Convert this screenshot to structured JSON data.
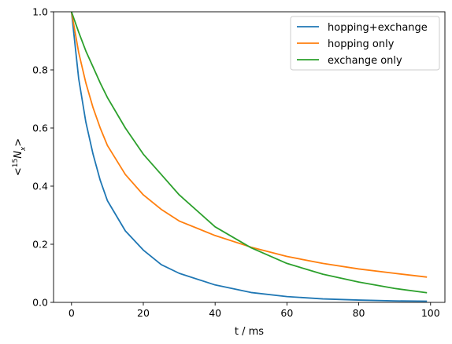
{
  "chart_data": {
    "type": "line",
    "title": "",
    "xlabel": "t / ms",
    "ylabel": "<15Nx>",
    "ylabel_parts": {
      "lt": "<",
      "sup": "15",
      "base": "N",
      "sub": "x",
      "gt": ">"
    },
    "xlim": [
      -5,
      104
    ],
    "ylim": [
      0,
      1.0
    ],
    "xticks": [
      0,
      20,
      40,
      60,
      80,
      100
    ],
    "xtick_labels": [
      "0",
      "20",
      "40",
      "60",
      "80",
      "100"
    ],
    "yticks": [
      0,
      0.2,
      0.4,
      0.6,
      0.8,
      1.0
    ],
    "ytick_labels": [
      "0.0",
      "0.2",
      "0.4",
      "0.6",
      "0.8",
      "1.0"
    ],
    "legend_position": "top-right",
    "x": [
      0,
      2,
      4,
      6,
      8,
      10,
      15,
      20,
      25,
      30,
      40,
      50,
      60,
      70,
      80,
      90,
      99
    ],
    "series": [
      {
        "name": "hopping+exchange",
        "color": "#1f77b4",
        "values": [
          1.0,
          0.77,
          0.62,
          0.51,
          0.42,
          0.35,
          0.246,
          0.18,
          0.13,
          0.1,
          0.06,
          0.034,
          0.02,
          0.012,
          0.008,
          0.005,
          0.004
        ]
      },
      {
        "name": "hopping only",
        "color": "#ff7f0e",
        "values": [
          1.0,
          0.86,
          0.755,
          0.67,
          0.6,
          0.54,
          0.44,
          0.37,
          0.32,
          0.28,
          0.23,
          0.19,
          0.158,
          0.134,
          0.115,
          0.1,
          0.087
        ]
      },
      {
        "name": "exchange only",
        "color": "#2ca02c",
        "values": [
          1.0,
          0.93,
          0.865,
          0.81,
          0.755,
          0.705,
          0.6,
          0.51,
          0.44,
          0.37,
          0.26,
          0.188,
          0.134,
          0.097,
          0.07,
          0.048,
          0.033
        ]
      }
    ]
  }
}
